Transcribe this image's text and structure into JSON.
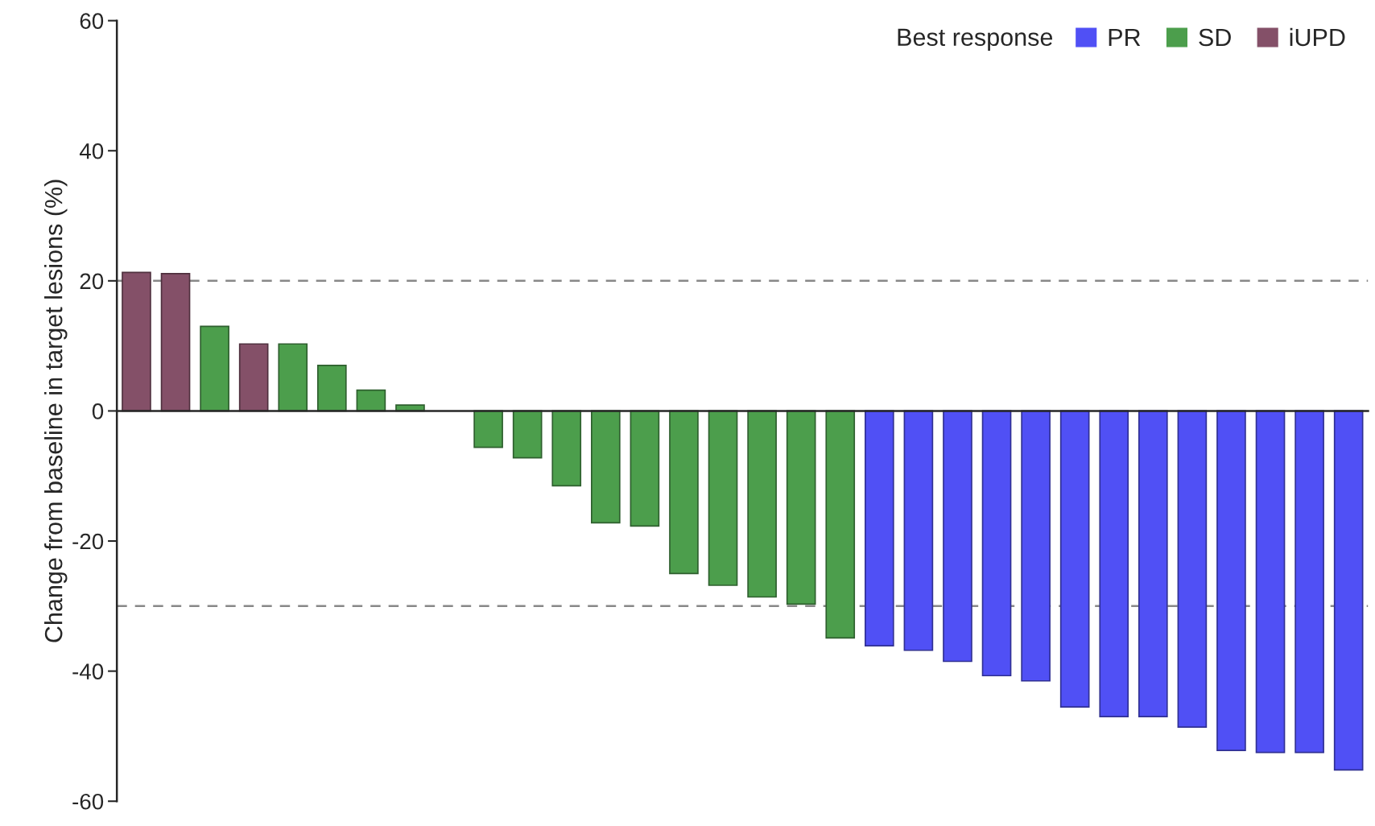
{
  "chart_data": {
    "type": "bar",
    "ylabel": "Change from baseline in target lesions (%)",
    "legend_title": "Best response",
    "legend": "top right",
    "categories": [
      null,
      null,
      null,
      null,
      null,
      null,
      null,
      null,
      null,
      null,
      null,
      null,
      null,
      null,
      null,
      null,
      null,
      null,
      null,
      null,
      null,
      null,
      null,
      null,
      null,
      null,
      null,
      null,
      null,
      null,
      null,
      null
    ],
    "series": [
      {
        "name": "PR",
        "color": "#5050f5",
        "values": [
          null,
          null,
          null,
          null,
          null,
          null,
          null,
          null,
          null,
          null,
          null,
          null,
          null,
          null,
          null,
          null,
          null,
          null,
          null,
          -36.1,
          -36.8,
          -38.5,
          -40.7,
          -41.5,
          -45.5,
          -47.0,
          -47.0,
          -48.6,
          -52.2,
          -52.5,
          -52.5,
          -55.2
        ]
      },
      {
        "name": "SD",
        "color": "#4c9e4c",
        "values": [
          null,
          null,
          13.0,
          null,
          10.3,
          7.0,
          3.2,
          0.9,
          null,
          -5.6,
          -7.2,
          -11.5,
          -17.2,
          -17.7,
          -25.0,
          -26.8,
          -28.6,
          -29.7,
          -34.9,
          null,
          null,
          null,
          null,
          null,
          null,
          null,
          null,
          null,
          null,
          null,
          null,
          null
        ]
      },
      {
        "name": "iUPD",
        "color": "#845068",
        "values": [
          21.3,
          21.1,
          null,
          10.3,
          null,
          null,
          null,
          null,
          null,
          null,
          null,
          null,
          null,
          null,
          null,
          null,
          null,
          null,
          null,
          null,
          null,
          null,
          null,
          null,
          null,
          null,
          null,
          null,
          null,
          null,
          null,
          null
        ]
      }
    ],
    "ylim": [
      -60,
      60
    ],
    "yticks": [
      -60,
      -40,
      -20,
      0,
      20,
      40,
      60
    ],
    "ref_lines": [
      {
        "axis": "y",
        "value": 20,
        "color": "#888888",
        "line_style": "dashed"
      },
      {
        "axis": "y",
        "value": -30,
        "color": "#888888",
        "line_style": "dashed"
      }
    ],
    "grid": false
  }
}
